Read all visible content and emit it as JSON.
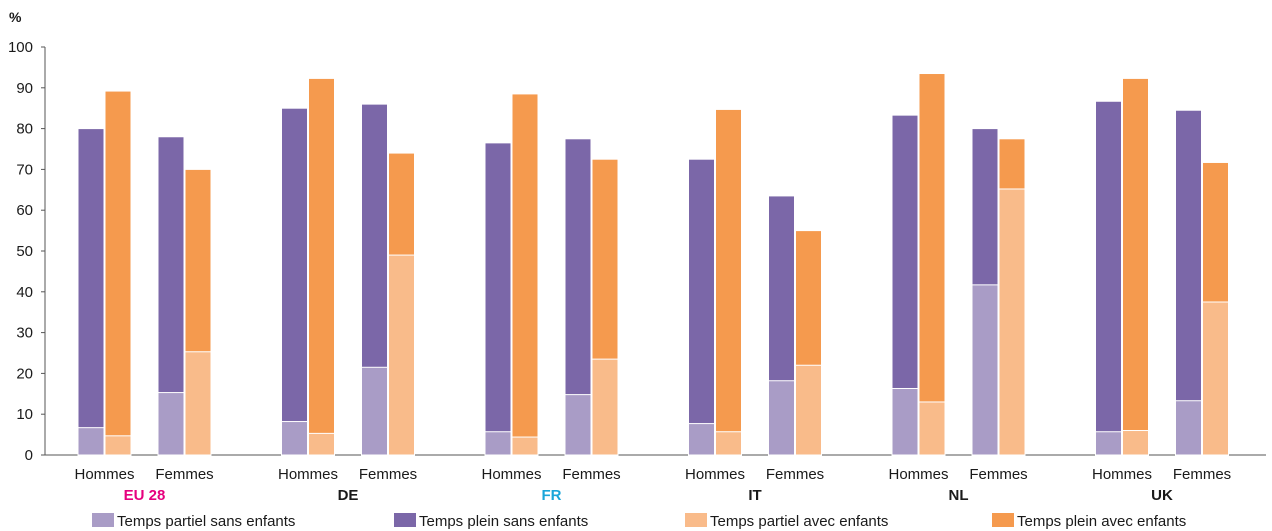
{
  "chart_data": {
    "type": "bar",
    "stacked": true,
    "unit_label": "%",
    "ylim": [
      0,
      100
    ],
    "yticks": [
      0,
      10,
      20,
      30,
      40,
      50,
      60,
      70,
      80,
      90,
      100
    ],
    "grid": false,
    "legend_position": "bottom",
    "groups": [
      {
        "country": "EU 28",
        "country_color": "#e6007e",
        "bars": [
          {
            "gender": "Hommes",
            "full_no_children": 80,
            "part_no_children": 6.7,
            "full_with_children": 89.2,
            "part_with_children": 4.7
          },
          {
            "gender": "Femmes",
            "full_no_children": 78,
            "part_no_children": 15.3,
            "full_with_children": 70,
            "part_with_children": 25.3
          }
        ]
      },
      {
        "country": "DE",
        "country_color": "#1a1a1a",
        "bars": [
          {
            "gender": "Hommes",
            "full_no_children": 85,
            "part_no_children": 8.2,
            "full_with_children": 92.3,
            "part_with_children": 5.3
          },
          {
            "gender": "Femmes",
            "full_no_children": 86,
            "part_no_children": 21.5,
            "full_with_children": 74,
            "part_with_children": 49
          }
        ]
      },
      {
        "country": "FR",
        "country_color": "#1aa6d9",
        "bars": [
          {
            "gender": "Hommes",
            "full_no_children": 76.5,
            "part_no_children": 5.7,
            "full_with_children": 88.5,
            "part_with_children": 4.4
          },
          {
            "gender": "Femmes",
            "full_no_children": 77.5,
            "part_no_children": 14.8,
            "full_with_children": 72.5,
            "part_with_children": 23.5
          }
        ]
      },
      {
        "country": "IT",
        "country_color": "#1a1a1a",
        "bars": [
          {
            "gender": "Hommes",
            "full_no_children": 72.5,
            "part_no_children": 7.7,
            "full_with_children": 84.7,
            "part_with_children": 5.7
          },
          {
            "gender": "Femmes",
            "full_no_children": 63.5,
            "part_no_children": 18.2,
            "full_with_children": 55,
            "part_with_children": 22
          }
        ]
      },
      {
        "country": "NL",
        "country_color": "#1a1a1a",
        "bars": [
          {
            "gender": "Hommes",
            "full_no_children": 83.3,
            "part_no_children": 16.3,
            "full_with_children": 93.5,
            "part_with_children": 13
          },
          {
            "gender": "Femmes",
            "full_no_children": 80,
            "part_no_children": 41.7,
            "full_with_children": 77.5,
            "part_with_children": 65.2
          }
        ]
      },
      {
        "country": "UK",
        "country_color": "#1a1a1a",
        "bars": [
          {
            "gender": "Hommes",
            "full_no_children": 86.7,
            "part_no_children": 5.7,
            "full_with_children": 92.3,
            "part_with_children": 6
          },
          {
            "gender": "Femmes",
            "full_no_children": 84.5,
            "part_no_children": 13.3,
            "full_with_children": 71.7,
            "part_with_children": 37.5
          }
        ]
      }
    ],
    "legend": [
      {
        "key": "part_no_children",
        "label": "Temps partiel sans enfants",
        "color": "#a99cc6"
      },
      {
        "key": "full_no_children",
        "label": "Temps plein sans enfants",
        "color": "#7b67a8"
      },
      {
        "key": "part_with_children",
        "label": "Temps partiel avec enfants",
        "color": "#f9bb8a"
      },
      {
        "key": "full_with_children",
        "label": "Temps plein avec enfants",
        "color": "#f59a4e"
      }
    ]
  }
}
